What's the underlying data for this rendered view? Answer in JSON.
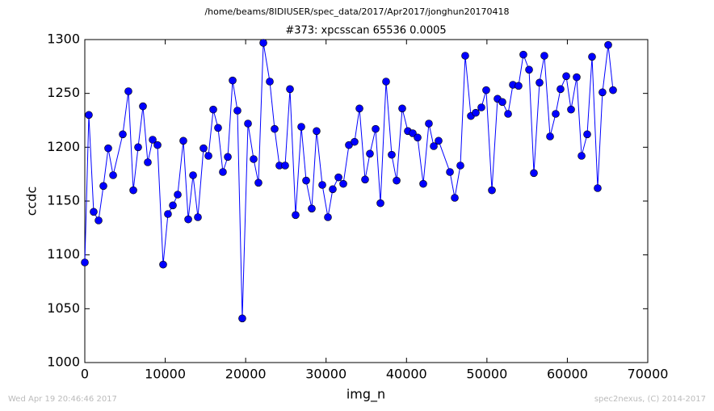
{
  "chart_data": {
    "type": "line",
    "title": "/home/beams/8IDIUSER/spec_data/2017/Apr2017/jonghun20170418",
    "subtitle": "#373: xpcsscan 65536 0.0005",
    "x_label": "img_n",
    "y_label": "ccdc",
    "color": "#0000ff",
    "x": [
      0,
      500,
      1100,
      1710,
      2310,
      2910,
      3520,
      4720,
      5420,
      6030,
      6630,
      7230,
      7830,
      8440,
      9040,
      9740,
      10340,
      10950,
      11550,
      12250,
      12860,
      13460,
      14060,
      14760,
      15370,
      15970,
      16570,
      17170,
      17780,
      18380,
      18980,
      19580,
      20290,
      20990,
      21590,
      22200,
      23000,
      23600,
      24200,
      24910,
      25510,
      26210,
      26920,
      27520,
      28220,
      28820,
      29530,
      30230,
      30830,
      31540,
      32140,
      32840,
      33540,
      34150,
      34850,
      35450,
      36160,
      36760,
      37460,
      38160,
      38770,
      39470,
      40170,
      40780,
      41380,
      42080,
      42780,
      43390,
      43990,
      45400,
      46000,
      46700,
      47300,
      48010,
      48610,
      49310,
      49910,
      50620,
      51320,
      51920,
      52630,
      53230,
      53930,
      54530,
      55240,
      55840,
      56540,
      57140,
      57850,
      58550,
      59150,
      59860,
      60460,
      61160,
      61770,
      62470,
      63070,
      63770,
      64370,
      65080,
      65680
    ],
    "values": [
      1093,
      1230,
      1140,
      1132,
      1164,
      1199,
      1174,
      1212,
      1252,
      1160,
      1200,
      1238,
      1186,
      1207,
      1202,
      1091,
      1138,
      1146,
      1156,
      1206,
      1133,
      1174,
      1135,
      1199,
      1192,
      1235,
      1218,
      1177,
      1191,
      1262,
      1234,
      1041,
      1222,
      1189,
      1167,
      1297,
      1261,
      1217,
      1183,
      1183,
      1254,
      1137,
      1219,
      1169,
      1143,
      1215,
      1165,
      1135,
      1161,
      1172,
      1166,
      1202,
      1205,
      1236,
      1170,
      1194,
      1217,
      1148,
      1261,
      1193,
      1169,
      1236,
      1215,
      1213,
      1209,
      1166,
      1222,
      1201,
      1206,
      1177,
      1153,
      1183,
      1285,
      1229,
      1232,
      1237,
      1253,
      1160,
      1245,
      1242,
      1231,
      1258,
      1257,
      1286,
      1272,
      1176,
      1260,
      1285,
      1210,
      1231,
      1254,
      1266,
      1235,
      1265,
      1192,
      1212,
      1284,
      1162,
      1251,
      1295,
      1253
    ],
    "xlim": [
      0,
      70000
    ],
    "xticks": [
      0,
      10000,
      20000,
      30000,
      40000,
      50000,
      60000,
      70000
    ],
    "ylim": [
      1000,
      1300
    ],
    "yticks": [
      1000,
      1050,
      1100,
      1150,
      1200,
      1250,
      1300
    ]
  },
  "footer": {
    "left": "Wed Apr 19 20:46:46 2017",
    "right": "spec2nexus, (C) 2014-2017"
  }
}
